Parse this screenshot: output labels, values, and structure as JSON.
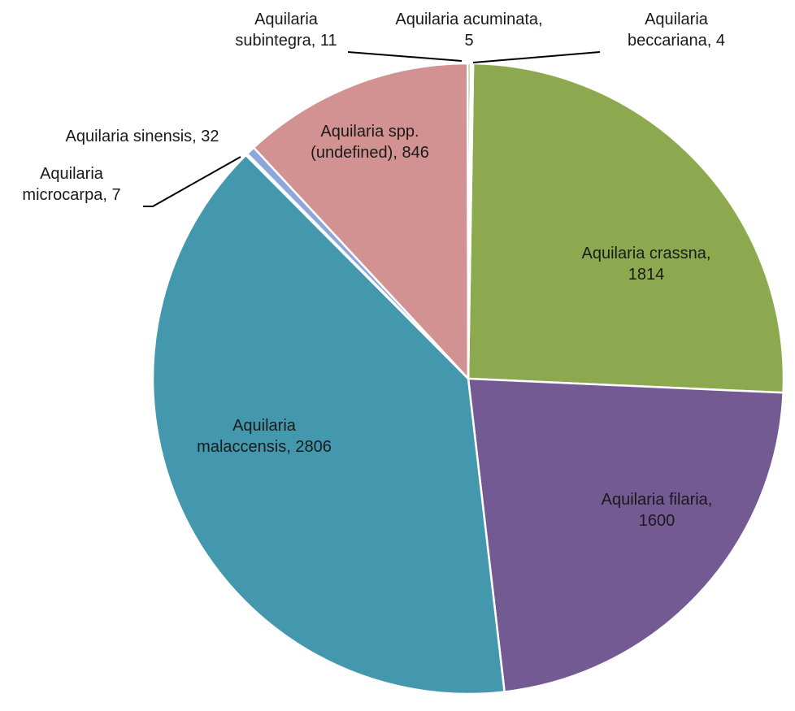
{
  "chart_data": {
    "type": "pie",
    "title": "",
    "slices": [
      {
        "label_lines": [
          "Aquilaria crassna,",
          "1814"
        ],
        "value": 1814,
        "color": "#8DA94F"
      },
      {
        "label_lines": [
          "Aquilaria filaria,",
          "1600"
        ],
        "value": 1600,
        "color": "#735A93"
      },
      {
        "label_lines": [
          "Aquilaria",
          "malaccensis, 2806"
        ],
        "value": 2806,
        "color": "#4398AE"
      },
      {
        "label_lines": [
          "Aquilaria",
          "microcarpa, 7"
        ],
        "value": 7,
        "color": "#B9C98F"
      },
      {
        "label_lines": [
          "Aquilaria sinensis, 32"
        ],
        "value": 32,
        "color": "#8EA7DA"
      },
      {
        "label_lines": [
          "Aquilaria spp.",
          "(undefined), 846"
        ],
        "value": 846,
        "color": "#D39292"
      },
      {
        "label_lines": [
          "Aquilaria",
          "subintegra, 11"
        ],
        "value": 11,
        "color": "#A9BD7A"
      },
      {
        "label_lines": [
          "Aquilaria acuminata,",
          "5"
        ],
        "value": 5,
        "color": "#EFA86E"
      },
      {
        "label_lines": [
          "Aquilaria",
          "beccariana, 4"
        ],
        "value": 4,
        "color": "#8EB3D5"
      }
    ],
    "start_angle_deg": 0.9,
    "direction": "clockwise",
    "legend": "none"
  }
}
